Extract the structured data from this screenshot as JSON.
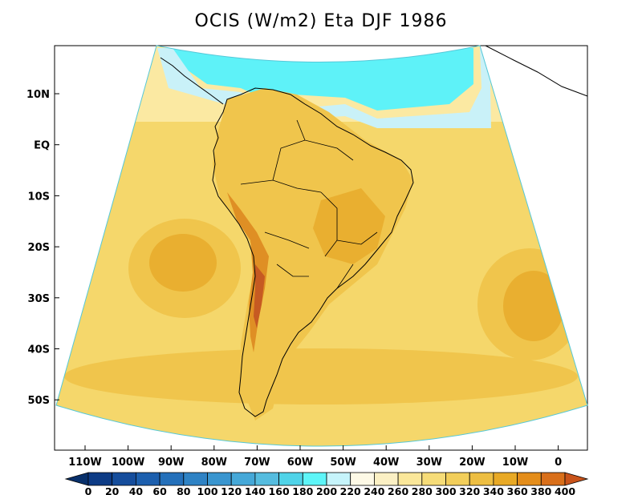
{
  "title": "OCIS (W/m2) Eta DJF 1986",
  "latitude_labels": [
    "10N",
    "EQ",
    "10S",
    "20S",
    "30S",
    "40S",
    "50S"
  ],
  "longitude_labels": [
    "110W",
    "100W",
    "90W",
    "80W",
    "70W",
    "60W",
    "50W",
    "40W",
    "30W",
    "20W",
    "10W",
    "0"
  ],
  "colorbar": {
    "labels": [
      "0",
      "20",
      "40",
      "60",
      "80",
      "100",
      "120",
      "140",
      "160",
      "180",
      "200",
      "220",
      "240",
      "260",
      "280",
      "300",
      "320",
      "340",
      "360",
      "380",
      "400"
    ],
    "colors": [
      "#08306b",
      "#0d3b85",
      "#154d9c",
      "#1c5fae",
      "#2470ba",
      "#2e82c4",
      "#3995cf",
      "#45a8d8",
      "#55bcdf",
      "#4fd3e8",
      "#5df5f8",
      "#c6f4fb",
      "#fdf9e6",
      "#fbf0c4",
      "#fae79a",
      "#f6dc78",
      "#f2ce5a",
      "#edbe42",
      "#e8a925",
      "#e48d1a",
      "#d96f1a",
      "#c9531a"
    ]
  },
  "field_colors": {
    "ocean_cool": "#5ef2f8",
    "ocean_pale": "#c9f1f8",
    "base": "#f5d76b",
    "mid": "#f0c54c",
    "high": "#e9af30",
    "peak": "#df8f24",
    "andes": "#c65a22"
  }
}
